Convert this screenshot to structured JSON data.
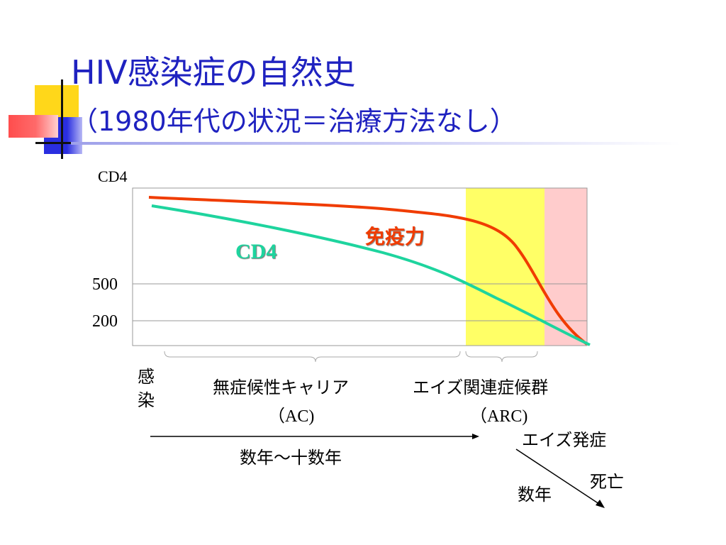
{
  "slide": {
    "title_line1": "HIV感染症の自然史",
    "title_line2": "（1980年代の状況＝治療方法なし）"
  },
  "chart_data": {
    "type": "line",
    "ylabel": "CD4",
    "y_ticks": [
      500,
      200
    ],
    "series": [
      {
        "name": "免疫力",
        "color": "#f03c00"
      },
      {
        "name": "CD4",
        "color": "#1ed49e"
      }
    ],
    "phases": [
      {
        "label": "無症候性キャリア",
        "abbr": "（AC)",
        "color": "#ffffff"
      },
      {
        "label": "エイズ関連症候群",
        "abbr": "（ARC)",
        "color": "#ffff66"
      },
      {
        "label": "",
        "abbr": "",
        "color": "#ffcccc"
      }
    ]
  },
  "annotations": {
    "infection_char1": "感",
    "infection_char2": "染",
    "duration_ac": "数年〜十数年",
    "aids_onset": "エイズ発症",
    "duration_aids": "数年",
    "death": "死亡"
  }
}
